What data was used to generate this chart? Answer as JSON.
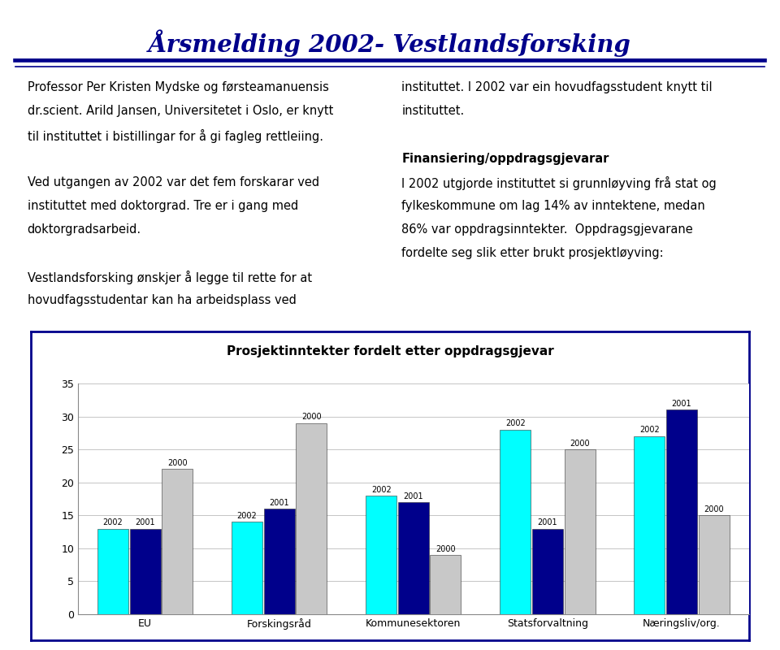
{
  "title": "Årsmelding 2002- Vestlandsforsking",
  "chart_title": "Prosjektinntekter fordelt etter oppdragsgjevar",
  "categories": [
    "EU",
    "Forskingsråd",
    "Kommunesektoren",
    "Statsforvaltning",
    "Næringsliv/org."
  ],
  "series": {
    "2002": [
      13,
      14,
      18,
      28,
      27
    ],
    "2001": [
      13,
      16,
      17,
      13,
      31
    ],
    "2000": [
      22,
      29,
      9,
      25,
      15
    ]
  },
  "colors": {
    "2002": "#00FFFF",
    "2001": "#00008B",
    "2000": "#C8C8C8"
  },
  "ylim": [
    0,
    35
  ],
  "yticks": [
    0,
    5,
    10,
    15,
    20,
    25,
    30,
    35
  ],
  "text_left_col": [
    "Professor Per Kristen Mydske og førsteamanuensis",
    "dr.scient. Arild Jansen, Universitetet i Oslo, er knytt",
    "til instituttet i bistillingar for å gi fagleg rettleiing.",
    "",
    "Ved utgangen av 2002 var det fem forskarar ved",
    "instituttet med doktorgrad. Tre er i gang med",
    "doktorgradsarbeid.",
    "",
    "Vestlandsforsking ønskjer å legge til rette for at",
    "hovudfagsstudentar kan ha arbeidsplass ved"
  ],
  "text_right_col": [
    "instituttet. I 2002 var ein hovudfagsstudent knytt til",
    "instituttet.",
    "",
    "Finansiering/oppdragsgjevarar",
    "I 2002 utgjorde instituttet si grunnløyving frå stat og",
    "fylkeskommune om lag 14% av inntektene, medan",
    "86% var oppdragsinntekter.  Oppdragsgjevarane",
    "fordelte seg slik etter brukt prosjektløyving:"
  ],
  "bg_color": "#FFFFFF",
  "border_color": "#00008B",
  "title_color": "#00008B",
  "text_color": "#000000",
  "bar_label_fontsize": 7,
  "axis_label_fontsize": 9,
  "chart_title_fontsize": 11,
  "text_fontsize": 10.5
}
